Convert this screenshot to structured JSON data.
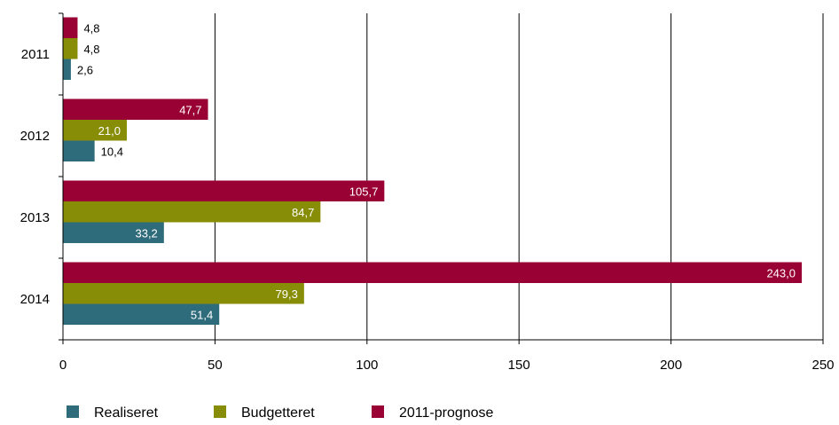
{
  "chart_data": {
    "type": "bar",
    "orientation": "horizontal",
    "categories": [
      "2011",
      "2012",
      "2013",
      "2014"
    ],
    "series": [
      {
        "name": "Realiseret",
        "color": "#2e6b7b",
        "values": [
          2.6,
          10.4,
          33.2,
          51.4
        ],
        "labels": [
          "2,6",
          "10,4",
          "33,2",
          "51,4"
        ]
      },
      {
        "name": "Budgetteret",
        "color": "#878d06",
        "values": [
          4.8,
          21.0,
          84.7,
          79.3
        ],
        "labels": [
          "4,8",
          "21,0",
          "84,7",
          "79,3"
        ]
      },
      {
        "name": "2011-prognose",
        "color": "#990033",
        "values": [
          4.8,
          47.7,
          105.7,
          243.0
        ],
        "labels": [
          "4,8",
          "47,7",
          "105,7",
          "243,0"
        ]
      }
    ],
    "xlim": [
      0,
      250
    ],
    "xticks": [
      0,
      50,
      100,
      150,
      200,
      250
    ],
    "grid": "vertical",
    "legend": "bottom-left",
    "title": "",
    "xlabel": "",
    "ylabel": ""
  }
}
